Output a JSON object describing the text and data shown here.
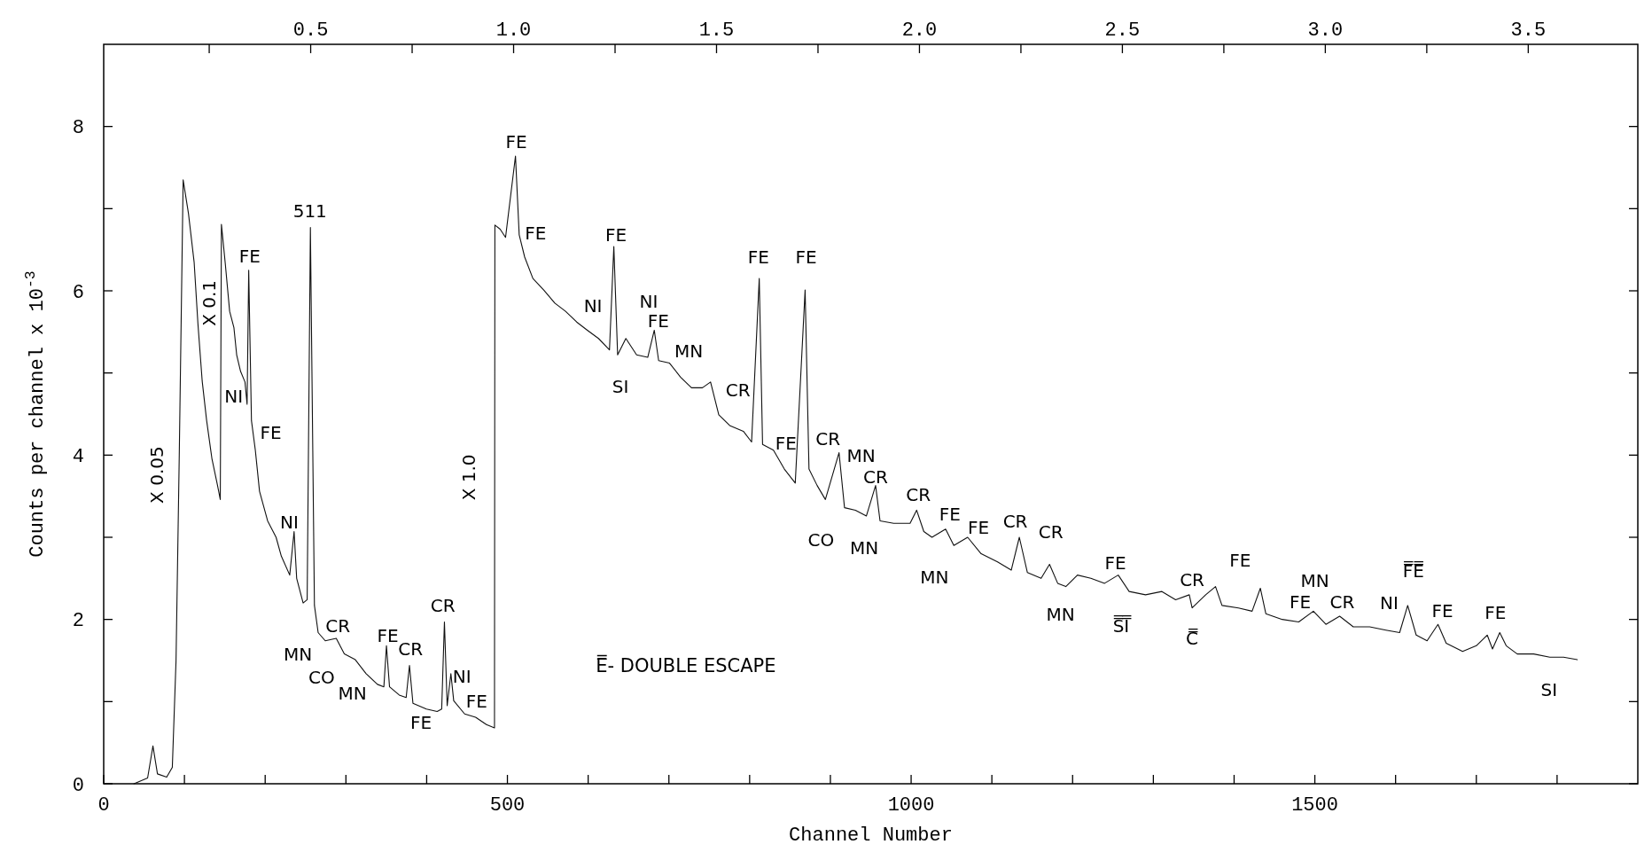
{
  "chart_data": {
    "type": "line",
    "xlabel": "Channel Number",
    "ylabel": "Counts per channel x 10$^{-3}$",
    "xlim": [
      0,
      1900
    ],
    "xticks": [
      0,
      {
        "value": 100,
        "label": null
      },
      {
        "value": 200,
        "label": null
      },
      {
        "value": 300,
        "label": null
      },
      {
        "value": 400,
        "label": null
      },
      500,
      {
        "value": 600,
        "label": null
      },
      {
        "value": 700,
        "label": null
      },
      {
        "value": 800,
        "label": null
      },
      {
        "value": 900,
        "label": null
      },
      1000,
      {
        "value": 1100,
        "label": null
      },
      {
        "value": 1200,
        "label": null
      },
      {
        "value": 1300,
        "label": null
      },
      {
        "value": 1400,
        "label": null
      },
      1500,
      {
        "value": 1600,
        "label": null
      },
      {
        "value": 1700,
        "label": null
      },
      {
        "value": 1800,
        "label": null
      }
    ],
    "x2lim": [
      -0.01,
      3.77
    ],
    "x2ticks": [
      {
        "value": 0.25,
        "label": null
      },
      0.5,
      {
        "value": 0.75,
        "label": null
      },
      {
        "value": 1,
        "label": "1.0"
      },
      {
        "value": 1.25,
        "label": null
      },
      1.5,
      {
        "value": 1.75,
        "label": null
      },
      {
        "value": 2,
        "label": "2.0"
      },
      {
        "value": 2.25,
        "label": null
      },
      2.5,
      {
        "value": 2.75,
        "label": null
      },
      {
        "value": 3,
        "label": "3.0"
      },
      {
        "value": 3.25,
        "label": null
      },
      3.5
    ],
    "ylim": [
      0,
      9
    ],
    "yticks": [
      0,
      {
        "value": 1,
        "label": null
      },
      2,
      {
        "value": 3,
        "label": null
      },
      4,
      {
        "value": 5,
        "label": null
      },
      6,
      {
        "value": 7,
        "label": null
      },
      8
    ],
    "grid": false,
    "marker": "none",
    "line_style": "solid",
    "series": [
      {
        "color": "#111111",
        "x": [
          37.5,
          54.4,
          61,
          66.6,
          78,
          85,
          89.6,
          93.6,
          98.4,
          105,
          112,
          116.7,
          122,
          127.5,
          134,
          141,
          144.4,
          145.8,
          150.5,
          156,
          161.3,
          164.7,
          169.5,
          175,
          177.6,
          179.6,
          183,
          187.8,
          193,
          203,
          213.5,
          220,
          230.4,
          235.8,
          239,
          247,
          252,
          256,
          261,
          265.6,
          274.4,
          288,
          298,
          311.6,
          325,
          339,
          347,
          350.2,
          354,
          366,
          374.6,
          378.7,
          383,
          399.7,
          413,
          418.6,
          422,
          425.4,
          430,
          433.5,
          447,
          460.6,
          474,
          484,
          484.5,
          491,
          497.7,
          510,
          514.6,
          521.4,
          531.6,
          545,
          558.7,
          572,
          585.8,
          599,
          612.8,
          626.4,
          631.8,
          636.5,
          646.7,
          660,
          673.8,
          681.9,
          687.3,
          700.8,
          714.4,
          728,
          741.5,
          751.6,
          761.8,
          775.3,
          792.2,
          802.4,
          811.9,
          816,
          829.5,
          843,
          856.5,
          868.7,
          873.5,
          883.6,
          893.8,
          910.7,
          917.5,
          931,
          944.6,
          956,
          961.5,
          978.4,
          998.7,
          1006.8,
          1015.7,
          1025.8,
          1042.7,
          1052.9,
          1070,
          1086.7,
          1107,
          1124,
          1134,
          1144,
          1161,
          1171.4,
          1181.5,
          1191.6,
          1206,
          1222.6,
          1239.6,
          1256.5,
          1270,
          1290.3,
          1310.6,
          1327.6,
          1344.5,
          1348,
          1364.8,
          1377,
          1385,
          1405.4,
          1422.3,
          1432.5,
          1439.3,
          1459.6,
          1480,
          1498.2,
          1513.7,
          1530.7,
          1547.6,
          1567.9,
          1588,
          1605,
          1615,
          1625.5,
          1639,
          1652.5,
          1662.7,
          1683,
          1700,
          1713.5,
          1720,
          1729,
          1737,
          1750.7,
          1771,
          1791,
          1808,
          1825
        ],
        "values": [
          0,
          0.07,
          0.46,
          0.12,
          0.08,
          0.2,
          1.5,
          4,
          7.35,
          6.94,
          6.35,
          5.6,
          4.9,
          4.42,
          3.96,
          3.63,
          3.46,
          6.81,
          6.34,
          5.75,
          5.55,
          5.22,
          5.02,
          4.89,
          4.62,
          6.25,
          4.42,
          4.06,
          3.56,
          3.2,
          3,
          2.77,
          2.54,
          3.07,
          2.5,
          2.2,
          2.24,
          6.77,
          2.17,
          1.84,
          1.74,
          1.77,
          1.58,
          1.51,
          1.34,
          1.21,
          1.18,
          1.68,
          1.18,
          1.08,
          1.05,
          1.44,
          0.98,
          0.91,
          0.88,
          0.91,
          1.97,
          0.95,
          1.34,
          1.01,
          0.85,
          0.81,
          0.72,
          0.68,
          6.8,
          6.75,
          6.65,
          7.64,
          6.68,
          6.41,
          6.15,
          6.01,
          5.85,
          5.75,
          5.62,
          5.52,
          5.42,
          5.28,
          6.54,
          5.22,
          5.42,
          5.22,
          5.19,
          5.52,
          5.15,
          5.12,
          4.95,
          4.82,
          4.82,
          4.89,
          4.49,
          4.36,
          4.29,
          4.16,
          6.15,
          4.13,
          4.06,
          3.83,
          3.66,
          6.01,
          3.83,
          3.63,
          3.46,
          4.03,
          3.36,
          3.33,
          3.26,
          3.63,
          3.2,
          3.17,
          3.17,
          3.33,
          3.07,
          3,
          3.1,
          2.9,
          3,
          2.8,
          2.7,
          2.6,
          3,
          2.57,
          2.5,
          2.67,
          2.44,
          2.4,
          2.54,
          2.5,
          2.44,
          2.54,
          2.34,
          2.3,
          2.34,
          2.24,
          2.3,
          2.14,
          2.3,
          2.4,
          2.17,
          2.14,
          2.1,
          2.38,
          2.07,
          2,
          1.97,
          2.1,
          1.94,
          2.04,
          1.91,
          1.91,
          1.87,
          1.84,
          2.17,
          1.81,
          1.74,
          1.94,
          1.71,
          1.61,
          1.68,
          1.81,
          1.64,
          1.84,
          1.68,
          1.58,
          1.58,
          1.54,
          1.54,
          1.51
        ]
      }
    ],
    "annotations": [
      "X 0.05",
      "X 0.1",
      "X 1.0",
      "FE",
      "511",
      "NI",
      "FE",
      "NI",
      "CR",
      "MN",
      "CO",
      "MN",
      "FE",
      "CR",
      "CR",
      "NI",
      "FE",
      "FE",
      "FE",
      "FE",
      "FE",
      "NI",
      "NI",
      "FE",
      "SI",
      "MN",
      "CR",
      "FE",
      "FE",
      "FE",
      "CR",
      "MN",
      "CR",
      "CO",
      "MN",
      "CR",
      "FE",
      "FE",
      "CR",
      "CR",
      "MN",
      "MN",
      "FE",
      "S̿I̿",
      "CR",
      "C̿",
      "FE",
      "MN",
      "FE",
      "CR",
      "NI",
      "F̿E̿",
      "FE",
      "FE",
      "SI",
      "E̿- DOUBLE ESCAPE"
    ]
  }
}
